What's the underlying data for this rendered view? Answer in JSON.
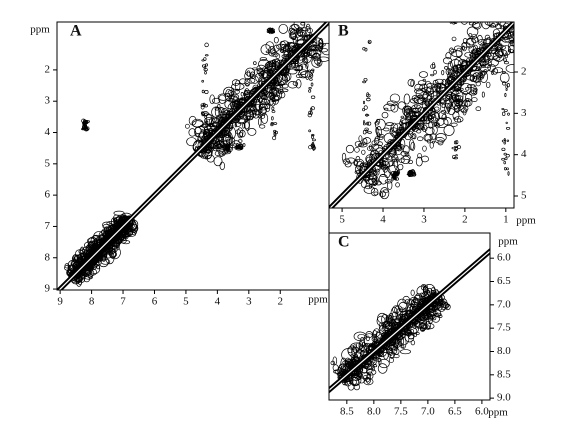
{
  "chart_data": [
    {
      "type": "contour",
      "label": "A",
      "xlabel": "ppm",
      "ylabel": "ppm",
      "xlim": [
        9.1,
        0.45
      ],
      "ylim": [
        0.47,
        9.03
      ],
      "xticks": [
        9,
        8,
        7,
        6,
        5,
        4,
        3,
        2
      ],
      "yticks": [
        2,
        3,
        4,
        5,
        6,
        7,
        8,
        9
      ]
    },
    {
      "type": "contour",
      "label": "B",
      "xlabel": "ppm",
      "ylabel": "ppm",
      "xlim": [
        5.32,
        0.8
      ],
      "ylim": [
        0.79,
        5.29
      ],
      "xticks": [
        5,
        4,
        3,
        2,
        1
      ],
      "yticks": [
        2,
        3,
        4,
        5
      ]
    },
    {
      "type": "contour",
      "label": "C",
      "xlabel": "ppm",
      "ylabel": "ppm",
      "xlim": [
        8.83,
        5.85
      ],
      "ylim": [
        5.46,
        9.04
      ],
      "xticks": [
        8.5,
        {
          "value": 8,
          "label": "8.0"
        },
        7.5,
        {
          "value": 7,
          "label": "7.0"
        },
        6.5,
        {
          "value": 6,
          "label": "6.0"
        }
      ],
      "yticks": [
        {
          "value": 6,
          "label": "6.0"
        },
        6.5,
        {
          "value": 7,
          "label": "7.0"
        },
        7.5,
        {
          "value": 8,
          "label": "8.0"
        },
        8.5,
        {
          "value": 9,
          "label": "9.0"
        }
      ]
    }
  ]
}
